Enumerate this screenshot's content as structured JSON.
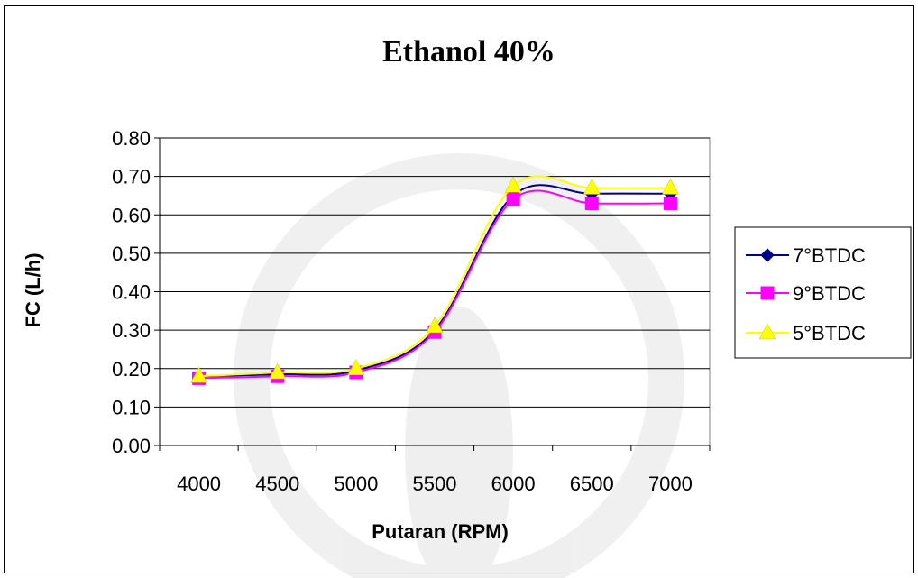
{
  "chart_data": {
    "type": "line",
    "title": "Ethanol 40%",
    "xlabel": "Putaran (RPM)",
    "ylabel": "FC (L/h)",
    "categories": [
      "4000",
      "4500",
      "5000",
      "5500",
      "6000",
      "6500",
      "7000"
    ],
    "ylim": [
      0,
      0.8
    ],
    "yticks": [
      "0.00",
      "0.10",
      "0.20",
      "0.30",
      "0.40",
      "0.50",
      "0.60",
      "0.70",
      "0.80"
    ],
    "grid": true,
    "legend_position": "right",
    "series": [
      {
        "name": "7°BTDC",
        "values": [
          0.18,
          0.185,
          0.195,
          0.3,
          0.65,
          0.655,
          0.655
        ],
        "color": "#000080",
        "marker": "diamond"
      },
      {
        "name": "9°BTDC",
        "values": [
          0.175,
          0.18,
          0.19,
          0.295,
          0.64,
          0.63,
          0.63
        ],
        "color": "#ff00ff",
        "marker": "square"
      },
      {
        "name": "5°BTDC",
        "values": [
          0.18,
          0.19,
          0.2,
          0.31,
          0.675,
          0.67,
          0.67
        ],
        "color": "#ffff00",
        "marker": "triangle"
      }
    ]
  }
}
